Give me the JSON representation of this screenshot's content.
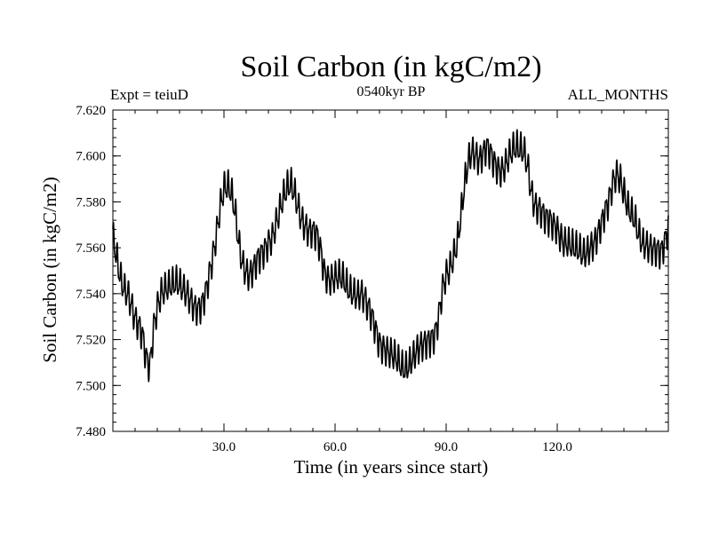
{
  "chart_data": {
    "type": "line",
    "title": "Soil Carbon (in kgC/m2)",
    "subtitle_left": "Expt = teiuD",
    "subtitle_center": "0540kyr BP",
    "subtitle_right": "ALL_MONTHS",
    "xlabel": "Time (in years since start)",
    "ylabel": "Soil Carbon (in kgC/m2)",
    "xlim": [
      0,
      150
    ],
    "ylim": [
      7.48,
      7.62
    ],
    "x_ticks": [
      30,
      60,
      90,
      120
    ],
    "x_tick_labels": [
      "30.0",
      "60.0",
      "90.0",
      "120.0"
    ],
    "y_ticks": [
      7.48,
      7.5,
      7.52,
      7.54,
      7.56,
      7.58,
      7.6,
      7.62
    ],
    "y_tick_labels": [
      "7.480",
      "7.500",
      "7.520",
      "7.540",
      "7.560",
      "7.580",
      "7.600",
      "7.620"
    ],
    "grid": false,
    "line_color": "#000000",
    "series": [
      {
        "x": [
          0,
          1,
          2,
          3,
          4,
          5,
          6,
          7,
          8,
          9,
          10,
          11,
          12,
          13,
          14,
          15,
          16,
          17,
          18,
          19,
          20,
          21,
          22,
          23,
          24,
          25,
          26,
          27,
          28,
          29,
          30,
          31,
          32,
          33,
          34,
          35,
          36,
          37,
          38,
          39,
          40,
          41,
          42,
          43,
          44,
          45,
          46,
          47,
          48,
          49,
          50,
          51,
          52,
          53,
          54,
          55,
          56,
          57,
          58,
          59,
          60,
          61,
          62,
          63,
          64,
          65,
          66,
          67,
          68,
          69,
          70,
          71,
          72,
          73,
          74,
          75,
          76,
          77,
          78,
          79,
          80,
          81,
          82,
          83,
          84,
          85,
          86,
          87,
          88,
          89,
          90,
          91,
          92,
          93,
          94,
          95,
          96,
          97,
          98,
          99,
          100,
          101,
          102,
          103,
          104,
          105,
          106,
          107,
          108,
          109,
          110,
          111,
          112,
          113,
          114,
          115,
          116,
          117,
          118,
          119,
          120,
          121,
          122,
          123,
          124,
          125,
          126,
          127,
          128,
          129,
          130,
          131,
          132,
          133,
          134,
          135,
          136,
          137,
          138,
          139,
          140,
          141,
          142,
          143,
          144,
          145,
          146,
          147,
          148,
          149,
          150
        ],
        "values": [
          7.565,
          7.556,
          7.547,
          7.542,
          7.54,
          7.535,
          7.529,
          7.526,
          7.522,
          7.512,
          7.508,
          7.525,
          7.534,
          7.54,
          7.542,
          7.543,
          7.544,
          7.545,
          7.544,
          7.542,
          7.54,
          7.537,
          7.534,
          7.533,
          7.535,
          7.54,
          7.548,
          7.556,
          7.566,
          7.578,
          7.586,
          7.587,
          7.584,
          7.576,
          7.562,
          7.553,
          7.549,
          7.548,
          7.551,
          7.555,
          7.557,
          7.559,
          7.562,
          7.564,
          7.57,
          7.576,
          7.582,
          7.586,
          7.588,
          7.584,
          7.578,
          7.572,
          7.569,
          7.567,
          7.567,
          7.566,
          7.56,
          7.55,
          7.546,
          7.546,
          7.547,
          7.548,
          7.547,
          7.544,
          7.541,
          7.54,
          7.539,
          7.54,
          7.538,
          7.534,
          7.53,
          7.524,
          7.518,
          7.516,
          7.515,
          7.514,
          7.513,
          7.511,
          7.508,
          7.507,
          7.509,
          7.512,
          7.515,
          7.517,
          7.518,
          7.519,
          7.52,
          7.522,
          7.53,
          7.542,
          7.548,
          7.551,
          7.556,
          7.562,
          7.574,
          7.588,
          7.598,
          7.602,
          7.6,
          7.598,
          7.601,
          7.604,
          7.601,
          7.597,
          7.594,
          7.593,
          7.596,
          7.6,
          7.603,
          7.604,
          7.603,
          7.602,
          7.596,
          7.584,
          7.578,
          7.577,
          7.575,
          7.573,
          7.572,
          7.57,
          7.568,
          7.564,
          7.562,
          7.562,
          7.561,
          7.56,
          7.559,
          7.557,
          7.558,
          7.56,
          7.562,
          7.566,
          7.571,
          7.576,
          7.581,
          7.588,
          7.592,
          7.59,
          7.584,
          7.578,
          7.575,
          7.572,
          7.566,
          7.562,
          7.561,
          7.56,
          7.559,
          7.559,
          7.558,
          7.562,
          7.569
        ]
      }
    ]
  }
}
